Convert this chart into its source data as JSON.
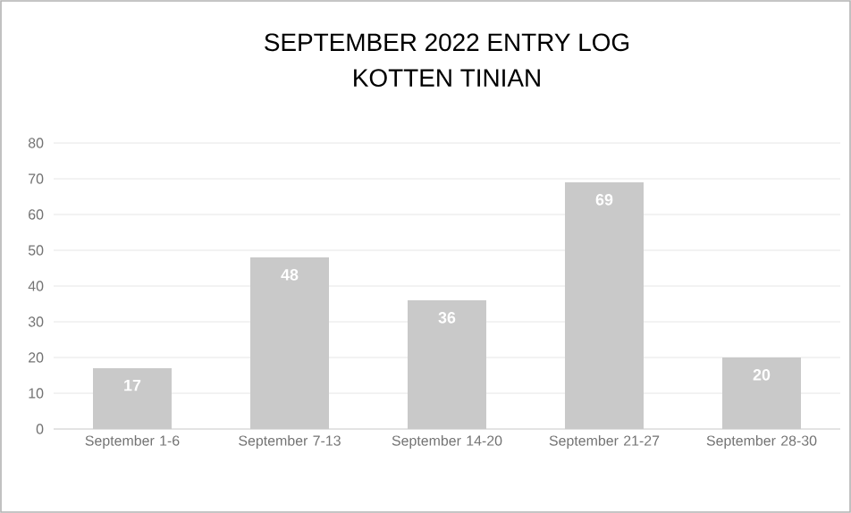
{
  "chart_data": {
    "type": "bar",
    "title": "SEPTEMBER 2022 ENTRY LOG",
    "subtitle": "KOTTEN TINIAN",
    "categories": [
      "September 1-6",
      "September 7-13",
      "September 14-20",
      "September 21-27",
      "September 28-30"
    ],
    "values": [
      17,
      48,
      36,
      69,
      20
    ],
    "color": "#c9c9c9",
    "ylim": [
      0,
      80
    ],
    "yticks": [
      0,
      10,
      20,
      30,
      40,
      50,
      60,
      70,
      80
    ],
    "grid": "y",
    "data_labels": true
  }
}
